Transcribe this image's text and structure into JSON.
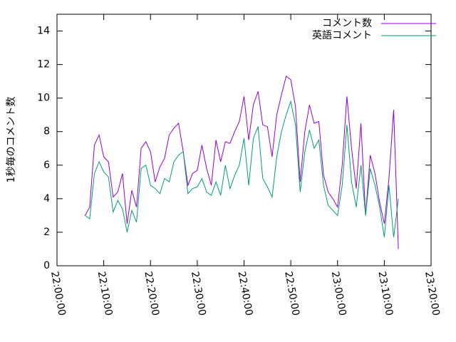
{
  "chart_data": {
    "type": "line",
    "ylabel": "1秒毎のコメント数",
    "x": [
      "22:06:00",
      "22:07:00",
      "22:08:00",
      "22:09:00",
      "22:10:00",
      "22:11:00",
      "22:12:00",
      "22:13:00",
      "22:14:00",
      "22:15:00",
      "22:16:00",
      "22:17:00",
      "22:18:00",
      "22:19:00",
      "22:20:00",
      "22:21:00",
      "22:22:00",
      "22:23:00",
      "22:24:00",
      "22:25:00",
      "22:26:00",
      "22:27:00",
      "22:28:00",
      "22:29:00",
      "22:30:00",
      "22:31:00",
      "22:32:00",
      "22:33:00",
      "22:34:00",
      "22:35:00",
      "22:36:00",
      "22:37:00",
      "22:38:00",
      "22:39:00",
      "22:40:00",
      "22:41:00",
      "22:42:00",
      "22:43:00",
      "22:44:00",
      "22:45:00",
      "22:46:00",
      "22:47:00",
      "22:48:00",
      "22:49:00",
      "22:50:00",
      "22:51:00",
      "22:52:00",
      "22:53:00",
      "22:54:00",
      "22:55:00",
      "22:56:00",
      "22:57:00",
      "22:58:00",
      "22:59:00",
      "23:00:00",
      "23:01:00",
      "23:02:00",
      "23:03:00",
      "23:04:00",
      "23:05:00",
      "23:06:00",
      "23:07:00",
      "23:08:00",
      "23:09:00",
      "23:10:00",
      "23:11:00",
      "23:12:00",
      "23:13:00"
    ],
    "series": [
      {
        "name": "コメント数",
        "color": "#9400d3",
        "values": [
          3.0,
          3.5,
          7.2,
          7.8,
          6.5,
          6.2,
          4.1,
          4.4,
          5.5,
          2.5,
          4.5,
          3.5,
          7.0,
          7.4,
          6.8,
          5.0,
          5.9,
          6.4,
          7.8,
          8.2,
          8.5,
          6.8,
          4.8,
          5.5,
          5.7,
          7.2,
          5.8,
          4.8,
          7.5,
          6.2,
          7.4,
          7.3,
          8.0,
          8.6,
          10.1,
          7.5,
          9.6,
          10.4,
          8.4,
          8.3,
          6.5,
          9.0,
          10.2,
          11.3,
          11.1,
          9.5,
          5.0,
          8.0,
          9.6,
          8.5,
          8.6,
          5.4,
          4.4,
          4.0,
          3.5,
          6.0,
          10.1,
          7.0,
          4.6,
          8.5,
          3.0,
          6.6,
          5.5,
          3.8,
          2.5,
          5.2,
          9.3,
          1.0
        ]
      },
      {
        "name": "英語コメント",
        "color": "#009e73",
        "values": [
          3.0,
          2.8,
          5.5,
          6.2,
          5.6,
          5.3,
          3.2,
          3.9,
          3.4,
          2.0,
          3.3,
          2.6,
          5.8,
          6.0,
          4.8,
          4.6,
          4.3,
          5.2,
          5.0,
          6.2,
          6.6,
          6.8,
          4.3,
          4.6,
          4.7,
          5.2,
          4.4,
          4.2,
          5.0,
          4.2,
          6.0,
          4.6,
          5.4,
          6.0,
          7.6,
          4.8,
          7.6,
          8.3,
          5.2,
          4.7,
          4.1,
          6.5,
          8.0,
          9.0,
          9.8,
          8.4,
          4.4,
          6.8,
          8.1,
          7.0,
          7.5,
          4.8,
          3.6,
          3.3,
          3.0,
          4.8,
          8.4,
          5.0,
          3.5,
          6.0,
          3.0,
          5.8,
          4.8,
          3.5,
          1.7,
          4.8,
          1.7,
          4.0
        ]
      }
    ],
    "xlim": [
      "22:00:00",
      "23:20:00"
    ],
    "xticks": [
      "22:00:00",
      "22:10:00",
      "22:20:00",
      "22:30:00",
      "22:40:00",
      "22:50:00",
      "23:00:00",
      "23:10:00",
      "23:20:00"
    ],
    "ylim": [
      0,
      15
    ],
    "yticks": [
      0,
      2,
      4,
      6,
      8,
      10,
      12,
      14
    ],
    "grid": false,
    "legend": "top-right"
  }
}
